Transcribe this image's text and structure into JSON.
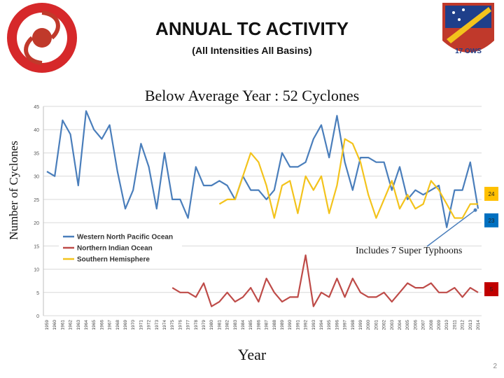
{
  "slide": {
    "title": "ANNUAL TC ACTIVITY",
    "subtitle": "(All Intensities All Basins)",
    "heading": "Below Average Year : 52 Cyclones",
    "page_number": "2"
  },
  "logos": {
    "left_name": "joint-typhoon-warning-center-seal",
    "left_color": "#d6282a",
    "right_name": "17-ows-squadron-patch",
    "right_color": "#c0392b",
    "right_text": "17 OWS"
  },
  "chart_data": {
    "type": "line",
    "xlabel": "Year",
    "ylabel": "Number of Cyclones",
    "ylim": [
      0,
      45
    ],
    "yticks": [
      0,
      5,
      10,
      15,
      20,
      25,
      30,
      35,
      40,
      45
    ],
    "grid": true,
    "legend_placement": "center-left",
    "x": [
      "1959",
      "1960",
      "1961",
      "1962",
      "1963",
      "1964",
      "1965",
      "1966",
      "1967",
      "1968",
      "1969",
      "1970",
      "1971",
      "1972",
      "1973",
      "1974",
      "1975",
      "1976",
      "1977",
      "1978",
      "1979",
      "1980",
      "1981",
      "1982",
      "1983",
      "1984",
      "1985",
      "1986",
      "1987",
      "1988",
      "1989",
      "1990",
      "1991",
      "1992",
      "1993",
      "1994",
      "1995",
      "1996",
      "1997",
      "1998",
      "1999",
      "2000",
      "2001",
      "2002",
      "2003",
      "2004",
      "2005",
      "2006",
      "2007",
      "2008",
      "2009",
      "2010",
      "2011",
      "2012",
      "2013",
      "2014"
    ],
    "series": [
      {
        "name": "Western North Pacific Ocean",
        "color": "#4a7ebb",
        "values": [
          31,
          30,
          42,
          39,
          28,
          44,
          40,
          38,
          41,
          31,
          23,
          27,
          37,
          32,
          23,
          35,
          25,
          25,
          21,
          32,
          28,
          28,
          29,
          28,
          25,
          30,
          27,
          27,
          25,
          27,
          35,
          32,
          32,
          33,
          38,
          41,
          34,
          43,
          33,
          27,
          34,
          34,
          33,
          33,
          27,
          32,
          25,
          27,
          26,
          27,
          28,
          19,
          27,
          27,
          33,
          23
        ]
      },
      {
        "name": "Northern Indian Ocean",
        "color": "#be4b48",
        "values": [
          null,
          null,
          null,
          null,
          null,
          null,
          null,
          null,
          null,
          null,
          null,
          null,
          null,
          null,
          null,
          null,
          6,
          5,
          5,
          4,
          7,
          2,
          3,
          5,
          3,
          4,
          6,
          3,
          8,
          5,
          3,
          4,
          4,
          13,
          2,
          5,
          4,
          8,
          4,
          8,
          5,
          4,
          4,
          5,
          3,
          5,
          7,
          6,
          6,
          7,
          5,
          5,
          6,
          4,
          6,
          5
        ]
      },
      {
        "name": "Southern Hemisphere",
        "color": "#f3c31c",
        "values": [
          null,
          null,
          null,
          null,
          null,
          null,
          null,
          null,
          null,
          null,
          null,
          null,
          null,
          null,
          null,
          null,
          null,
          null,
          null,
          null,
          null,
          null,
          24,
          25,
          25,
          30,
          35,
          33,
          28,
          21,
          28,
          29,
          22,
          30,
          27,
          30,
          22,
          28,
          38,
          37,
          33,
          26,
          21,
          25,
          29,
          23,
          26,
          23,
          24,
          29,
          27,
          24,
          21,
          21,
          24,
          24
        ]
      }
    ],
    "end_labels": [
      {
        "series": 2,
        "text": "24",
        "fill": "#ffc000",
        "ypos": 26.2
      },
      {
        "series": 0,
        "text": "23",
        "fill": "#0070c0",
        "ypos": 20.5
      },
      {
        "series": 1,
        "text": "5",
        "fill": "#c00000",
        "ypos": 5.7
      }
    ],
    "annotation": {
      "text": "Includes 7 Super Typhoons",
      "target_series": 0,
      "target_index": 55
    }
  }
}
